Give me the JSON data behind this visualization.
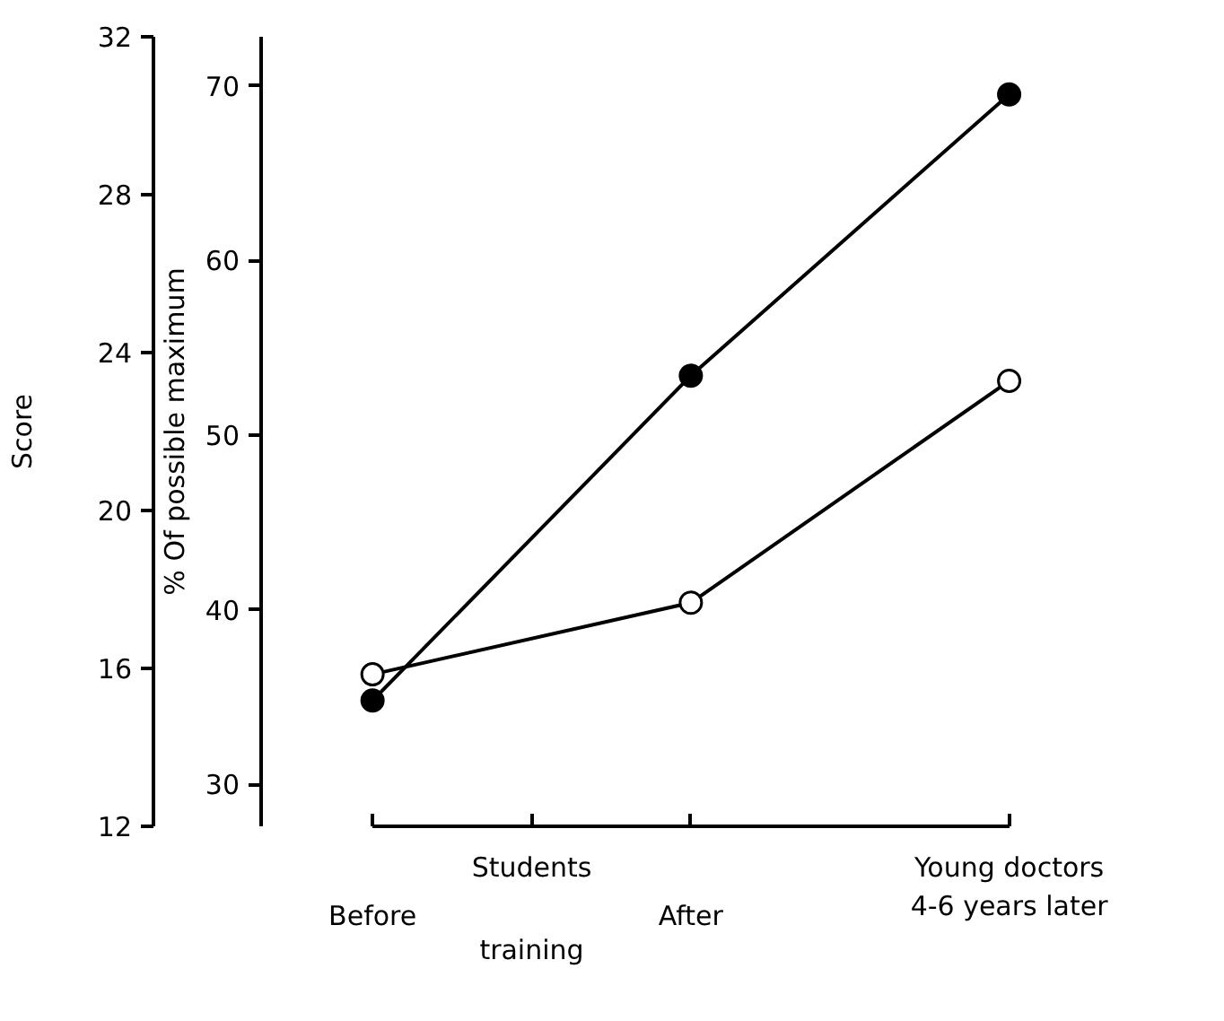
{
  "chart_data": {
    "type": "line",
    "categories": [
      "Before",
      "After",
      "Young doctors\n4-6 years later"
    ],
    "ylabel": "% Of possible maximum",
    "ylim": [
      27.6,
      72.8
    ],
    "yticks": [
      30,
      40,
      50,
      60,
      70
    ],
    "y2label": "Score",
    "y2lim": [
      12,
      32
    ],
    "y2ticks": [
      12,
      16,
      20,
      24,
      28,
      32
    ],
    "annotations": [
      "Students",
      "training"
    ],
    "grid": false,
    "marker": "circle",
    "line_style": "solid",
    "series": [
      {
        "color": "#000000",
        "values": [
          34.8,
          53.4,
          69.5
        ]
      },
      {
        "color": "#ffffff",
        "values": [
          36.3,
          40.4,
          53.1
        ]
      }
    ]
  }
}
